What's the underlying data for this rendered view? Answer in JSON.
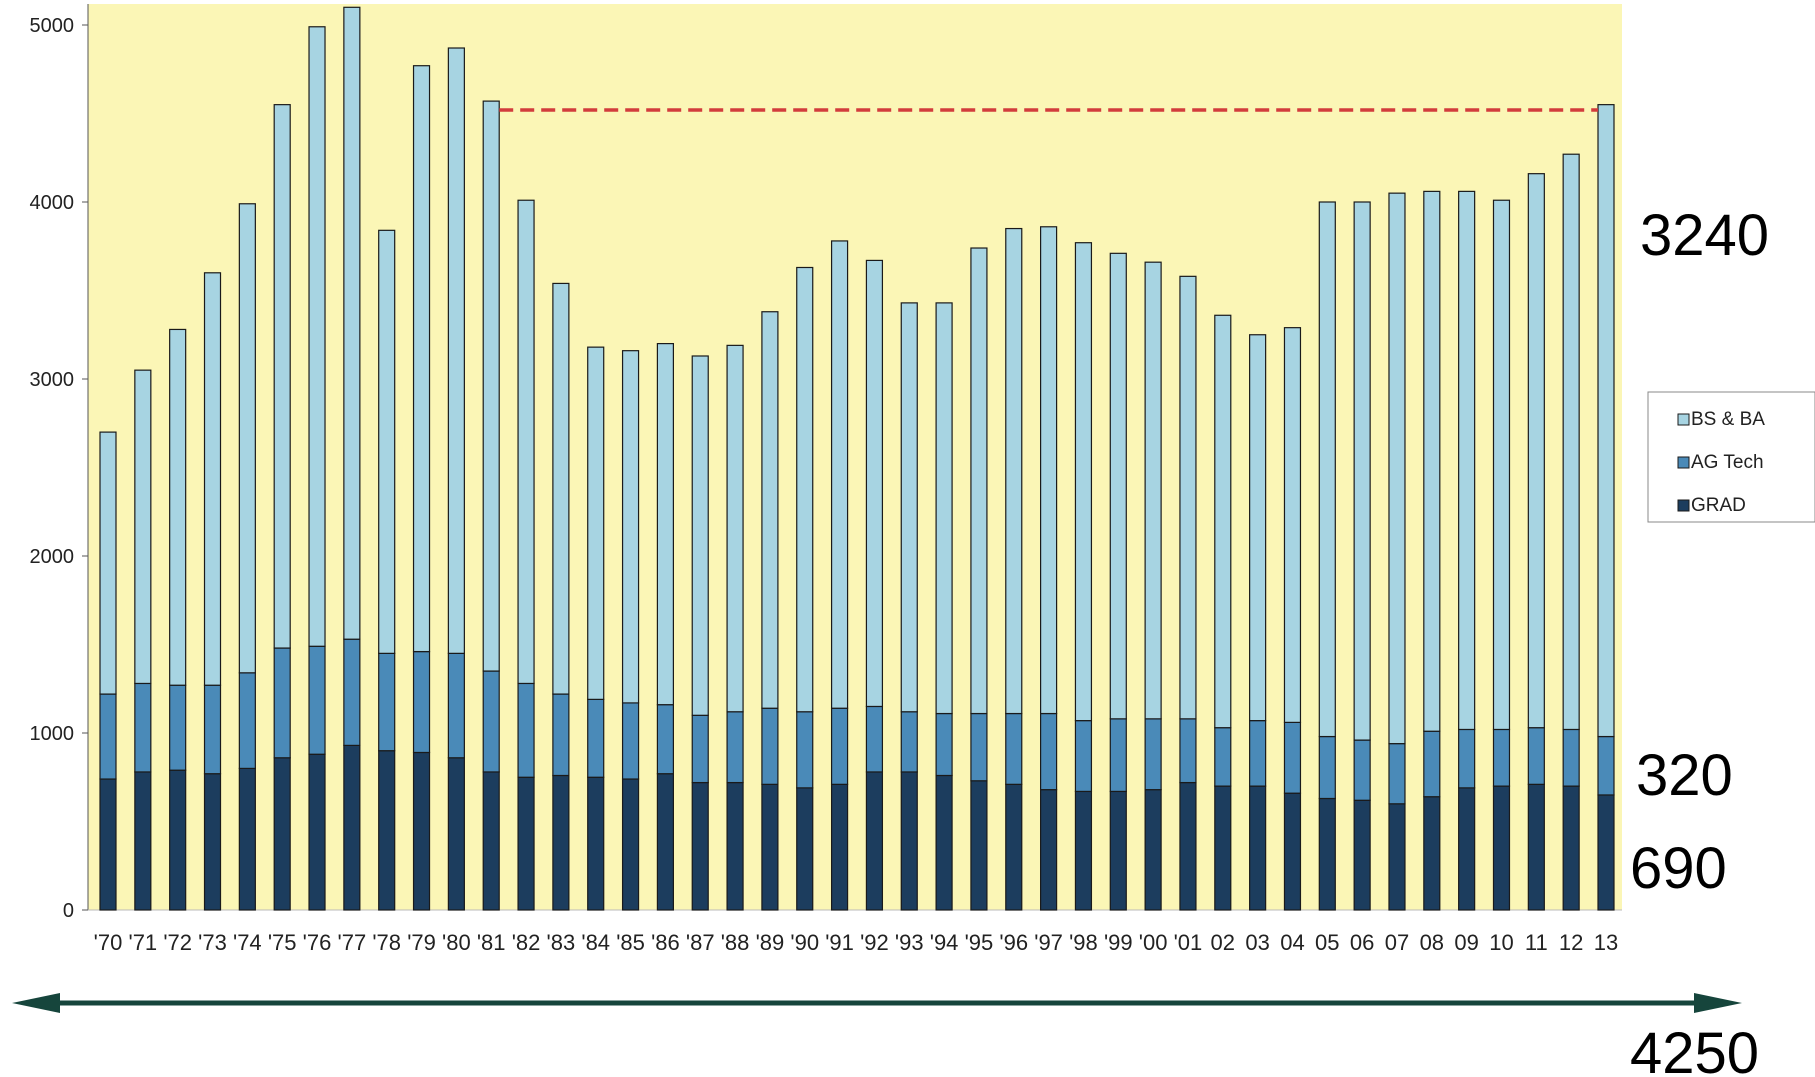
{
  "chart_data": {
    "type": "bar",
    "stacked": true,
    "title": "",
    "xlabel": "",
    "ylabel": "",
    "ylim": [
      0,
      5000
    ],
    "yticks": [
      "0",
      "1000",
      "2000",
      "3000",
      "4000",
      "5000"
    ],
    "grid": false,
    "legend_position": "right",
    "categories": [
      "'70",
      "'71",
      "'72",
      "'73",
      "'74",
      "'75",
      "'76",
      "'77",
      "'78",
      "'79",
      "'80",
      "'81",
      "'82",
      "'83",
      "'84",
      "'85",
      "'86",
      "'87",
      "'88",
      "'89",
      "'90",
      "'91",
      "'92",
      "'93",
      "'94",
      "'95",
      "'96",
      "'97",
      "'98",
      "'99",
      "'00",
      "'01",
      "02",
      "03",
      "04",
      "05",
      "06",
      "07",
      "08",
      "09",
      "10",
      "11",
      "12",
      "13"
    ],
    "series": [
      {
        "name": "GRAD",
        "color": "#1c3d5e",
        "values": [
          740,
          780,
          790,
          770,
          800,
          860,
          880,
          930,
          900,
          890,
          860,
          780,
          750,
          760,
          750,
          740,
          770,
          720,
          720,
          710,
          690,
          710,
          780,
          780,
          760,
          730,
          710,
          680,
          670,
          670,
          680,
          720,
          700,
          700,
          660,
          630,
          620,
          600,
          640,
          690,
          700,
          710,
          700,
          650
        ]
      },
      {
        "name": "AG Tech",
        "color": "#4a8ab8",
        "values": [
          480,
          500,
          480,
          500,
          540,
          620,
          610,
          600,
          550,
          570,
          590,
          570,
          530,
          460,
          440,
          430,
          390,
          380,
          400,
          430,
          430,
          430,
          370,
          340,
          350,
          380,
          400,
          430,
          400,
          410,
          400,
          360,
          330,
          370,
          400,
          350,
          340,
          340,
          370,
          330,
          320,
          320,
          320,
          330
        ]
      },
      {
        "name": "BS & BA",
        "color": "#a7d4e2",
        "values": [
          1480,
          1770,
          2010,
          2330,
          2650,
          3070,
          3500,
          3570,
          2390,
          3310,
          3420,
          3220,
          2730,
          2320,
          1990,
          1990,
          2040,
          2030,
          2070,
          2240,
          2510,
          2640,
          2520,
          2310,
          2320,
          2630,
          2740,
          2750,
          2700,
          2630,
          2580,
          2500,
          2330,
          2180,
          2230,
          3020,
          3040,
          3110,
          3050,
          3040,
          2990,
          3130,
          3250,
          3570
        ]
      }
    ],
    "reference_line": {
      "value": 4520,
      "from_category": "'81",
      "to_category": "13",
      "color": "#d23c3c"
    },
    "annotations": [
      {
        "text": "3240",
        "attach": "BS & BA"
      },
      {
        "text": "320",
        "attach": "AG Tech"
      },
      {
        "text": "690",
        "attach": "GRAD"
      },
      {
        "text": "4250",
        "attach": "total"
      }
    ],
    "plot_background": "#fbf6b6",
    "timeline_arrow_color": "#16453c"
  }
}
